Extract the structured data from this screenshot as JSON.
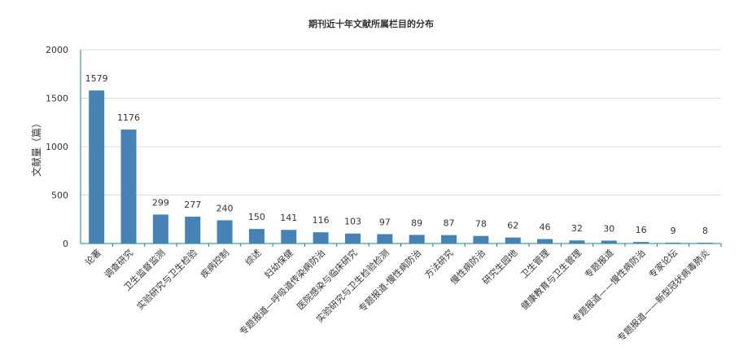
{
  "chart_data": {
    "type": "bar",
    "title": "期刊近十年文献所属栏目的分布",
    "ylabel": "文献量（篇）",
    "xlabel": "",
    "ylim": [
      0,
      2000
    ],
    "yticks": [
      0,
      500,
      1000,
      1500,
      2000
    ],
    "grid": true,
    "categories": [
      "论著",
      "调查研究",
      "卫生监督监测",
      "实验研究与卫生检验",
      "疾病控制",
      "综述",
      "妇幼保健",
      "专题报道—呼吸道传染病防治",
      "医院感染与临床研究",
      "实验研究与卫生检验检测",
      "专题报道-慢性病防治",
      "方法研究",
      "慢性病防治",
      "研究生园地",
      "卫生管理",
      "健康教育与卫生管理",
      "专题报道",
      "专题报道——慢性病防治",
      "专家论坛",
      "专题报道——新型冠状病毒肺炎"
    ],
    "values": [
      1579,
      1176,
      299,
      277,
      240,
      150,
      141,
      116,
      103,
      97,
      89,
      87,
      78,
      62,
      46,
      32,
      30,
      16,
      9,
      8
    ],
    "bar_color": "#4682b4",
    "axis_color": "#0b8a8a",
    "grid_color": "#dddddd"
  }
}
